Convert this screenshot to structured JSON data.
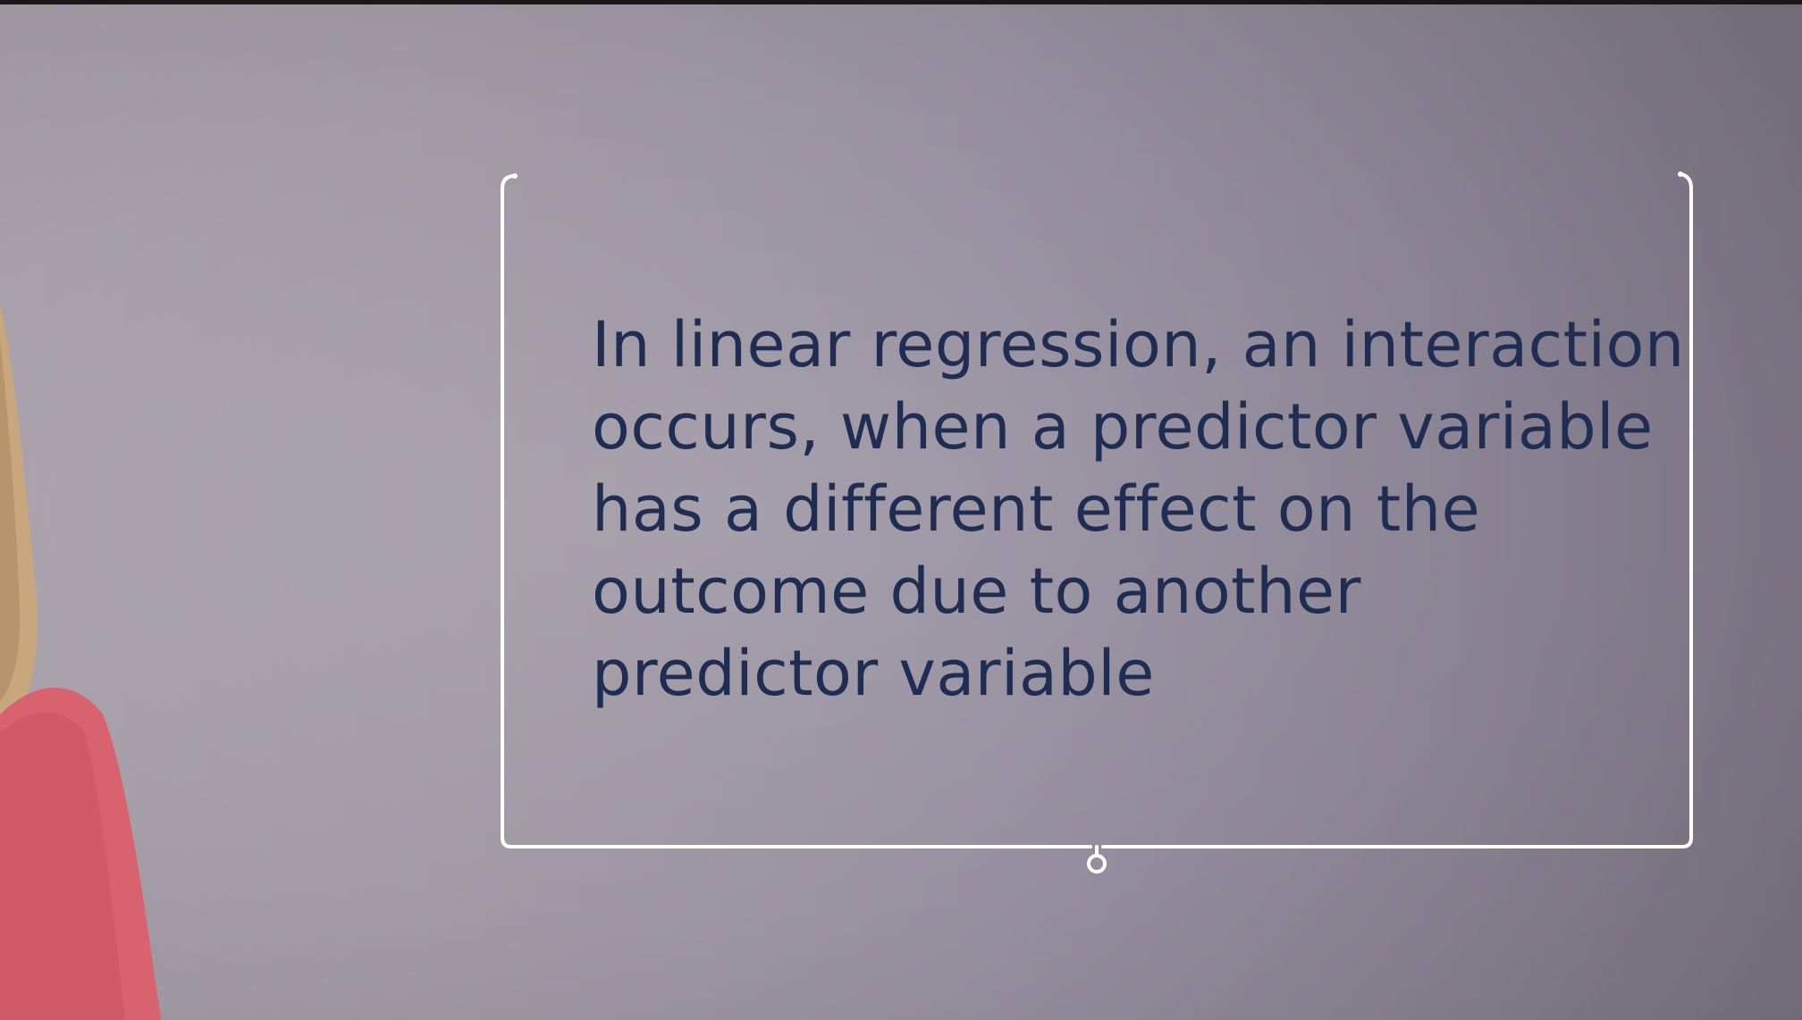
{
  "slide": {
    "text_lines": [
      "In linear regression, an interaction",
      "occurs, when a predictor variable",
      "has a different effect on the",
      "outcome due to another",
      "predictor variable"
    ]
  },
  "colors": {
    "background": "#9a93a0",
    "text": "#1f2d52",
    "frame": "#ffffff",
    "presenter_shirt": "#d8636e",
    "presenter_hair": "#c9a77c"
  }
}
